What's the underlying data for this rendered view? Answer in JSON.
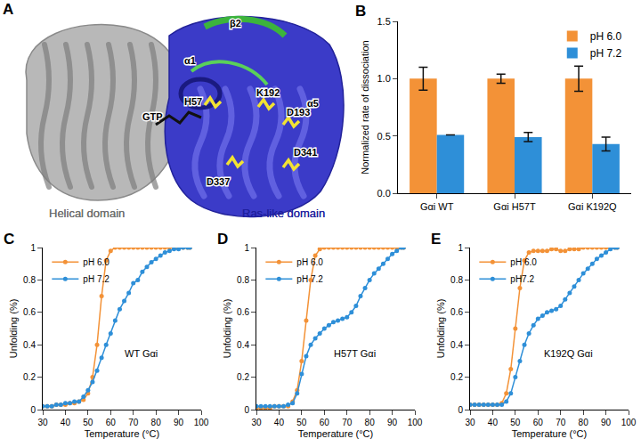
{
  "chart_data": [
    {
      "panel": "B",
      "type": "bar",
      "categories": [
        "Gαi WT",
        "Gαi H57T",
        "Gαi K192Q"
      ],
      "ylabel": "Normalized rate of dissociation",
      "ylim": [
        0,
        1.5
      ],
      "yticks": [
        {
          "value": 0,
          "label": "0.0"
        },
        {
          "value": 0.5,
          "label": "0.5"
        },
        {
          "value": 1,
          "label": "1.0"
        },
        {
          "value": 1.5,
          "label": "1.5"
        }
      ],
      "legend": "top right",
      "grid": false,
      "series": [
        {
          "name": "pH 6.0",
          "color": "#F39237",
          "values": [
            1.0,
            1.0,
            1.0
          ],
          "errors": [
            0.1,
            0.04,
            0.11
          ]
        },
        {
          "name": "pH 7.2",
          "color": "#2E8FD8",
          "values": [
            0.51,
            0.49,
            0.43
          ],
          "errors": [
            0,
            0.04,
            0.06
          ]
        }
      ]
    },
    {
      "panel": "C",
      "type": "line",
      "annotation": "WT Gαi",
      "xlabel": "Temperature (°C)",
      "ylabel": "Unfolding (%)",
      "xlim": [
        30,
        100
      ],
      "xticks": [
        30,
        40,
        50,
        60,
        70,
        80,
        90,
        100
      ],
      "ylim": [
        0,
        1
      ],
      "yticks": [
        0,
        0.2,
        0.4,
        0.6,
        0.8,
        1
      ],
      "legend": "top left",
      "marker": "circle",
      "grid": false,
      "x": [
        30,
        32,
        34,
        36,
        38,
        40,
        42,
        44,
        46,
        48,
        50,
        52,
        54,
        56,
        58,
        60,
        62,
        64,
        66,
        68,
        70,
        72,
        74,
        76,
        78,
        80,
        82,
        84,
        86,
        88,
        90,
        92,
        94,
        95
      ],
      "series": [
        {
          "name": "pH 6.0",
          "color": "#F39237",
          "values": [
            0.02,
            0.02,
            0.02,
            0.03,
            0.03,
            0.03,
            0.04,
            0.04,
            0.05,
            0.06,
            0.1,
            0.2,
            0.4,
            0.7,
            0.92,
            0.98,
            1,
            1,
            1,
            1,
            1,
            1,
            1,
            1,
            1,
            1,
            1,
            1,
            1,
            1,
            1,
            1,
            1,
            1
          ]
        },
        {
          "name": "pH 7.2",
          "color": "#2E8FD8",
          "values": [
            0.02,
            0.02,
            0.02,
            0.03,
            0.03,
            0.04,
            0.04,
            0.05,
            0.05,
            0.08,
            0.12,
            0.17,
            0.24,
            0.32,
            0.4,
            0.47,
            0.55,
            0.62,
            0.67,
            0.72,
            0.78,
            0.8,
            0.85,
            0.88,
            0.91,
            0.93,
            0.95,
            0.97,
            0.98,
            0.99,
            0.99,
            1,
            1,
            1
          ]
        }
      ]
    },
    {
      "panel": "D",
      "type": "line",
      "annotation": "H57T Gαi",
      "xlabel": "Temperature (°C)",
      "ylabel": "Unfolding (%)",
      "xlim": [
        30,
        100
      ],
      "xticks": [
        30,
        40,
        50,
        60,
        70,
        80,
        90,
        100
      ],
      "ylim": [
        0,
        1
      ],
      "yticks": [
        0,
        0.2,
        0.4,
        0.6,
        0.8,
        1
      ],
      "legend": "top left",
      "marker": "circle",
      "grid": false,
      "x": [
        30,
        32,
        34,
        36,
        38,
        40,
        42,
        44,
        46,
        48,
        50,
        52,
        54,
        56,
        58,
        60,
        62,
        64,
        66,
        68,
        70,
        72,
        74,
        76,
        78,
        80,
        82,
        84,
        86,
        88,
        90,
        92,
        94,
        95
      ],
      "series": [
        {
          "name": "pH 6.0",
          "color": "#F39237",
          "values": [
            0.01,
            0.01,
            0.01,
            0.01,
            0.02,
            0.02,
            0.02,
            0.02,
            0.05,
            0.12,
            0.3,
            0.55,
            0.8,
            0.95,
            0.99,
            1,
            1,
            1,
            1,
            1,
            1,
            1,
            1,
            1,
            1,
            1,
            1,
            1,
            1,
            1,
            1,
            1,
            1,
            1
          ]
        },
        {
          "name": "pH 7.2",
          "color": "#2E8FD8",
          "values": [
            0.02,
            0.02,
            0.02,
            0.02,
            0.02,
            0.02,
            0.02,
            0.03,
            0.04,
            0.1,
            0.22,
            0.33,
            0.4,
            0.44,
            0.47,
            0.5,
            0.52,
            0.54,
            0.55,
            0.56,
            0.57,
            0.6,
            0.64,
            0.7,
            0.75,
            0.8,
            0.84,
            0.87,
            0.9,
            0.93,
            0.96,
            0.98,
            1,
            1
          ]
        }
      ]
    },
    {
      "panel": "E",
      "type": "line",
      "annotation": "K192Q Gαi",
      "xlabel": "Temperature (°C)",
      "ylabel": "Unfolding (%)",
      "xlim": [
        30,
        100
      ],
      "xticks": [
        30,
        40,
        50,
        60,
        70,
        80,
        90,
        100
      ],
      "ylim": [
        0,
        1
      ],
      "yticks": [
        0,
        0.2,
        0.4,
        0.6,
        0.8,
        1
      ],
      "legend": "top left",
      "marker": "circle",
      "grid": false,
      "x": [
        30,
        32,
        34,
        36,
        38,
        40,
        42,
        44,
        46,
        48,
        50,
        52,
        54,
        56,
        58,
        60,
        62,
        64,
        66,
        68,
        70,
        72,
        74,
        76,
        78,
        80,
        82,
        84,
        86,
        88,
        90,
        92,
        94,
        95
      ],
      "series": [
        {
          "name": "pH 6.0",
          "color": "#F39237",
          "values": [
            0.03,
            0.03,
            0.03,
            0.03,
            0.03,
            0.03,
            0.03,
            0.04,
            0.1,
            0.25,
            0.5,
            0.75,
            0.92,
            0.97,
            0.98,
            0.98,
            0.98,
            0.98,
            0.99,
            0.99,
            0.98,
            0.98,
            0.99,
            0.99,
            0.99,
            1,
            1,
            1,
            1,
            1,
            1,
            1,
            1,
            1
          ]
        },
        {
          "name": "pH7.2",
          "color": "#2E8FD8",
          "values": [
            0.03,
            0.03,
            0.03,
            0.03,
            0.03,
            0.03,
            0.03,
            0.03,
            0.05,
            0.1,
            0.2,
            0.3,
            0.4,
            0.47,
            0.52,
            0.56,
            0.58,
            0.6,
            0.61,
            0.62,
            0.64,
            0.68,
            0.72,
            0.76,
            0.8,
            0.84,
            0.87,
            0.9,
            0.93,
            0.95,
            0.97,
            0.99,
            1,
            1
          ]
        }
      ]
    }
  ],
  "diagram": {
    "panel": "A",
    "labels": [
      "β2",
      "α1",
      "H57",
      "K192",
      "D193",
      "GTP",
      "α5",
      "D341",
      "D337",
      "Helical domain",
      "Ras-like domain"
    ]
  }
}
